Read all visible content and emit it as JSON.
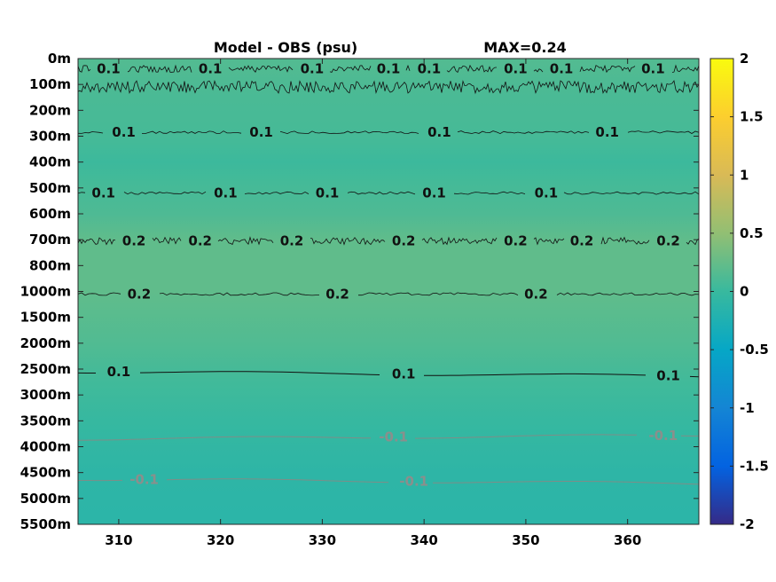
{
  "chart_data": {
    "type": "heatmap",
    "title": "Model - OBS (psu)",
    "annotation": "MAX=0.24",
    "xlabel": "",
    "ylabel": "",
    "x_ticks": [
      310,
      320,
      330,
      340,
      350,
      360
    ],
    "xlim": [
      306,
      367
    ],
    "y_tick_labels": [
      "0m",
      "100m",
      "200m",
      "300m",
      "400m",
      "500m",
      "600m",
      "700m",
      "800m",
      "1000m",
      "1500m",
      "2000m",
      "2500m",
      "3000m",
      "3500m",
      "4000m",
      "4500m",
      "5000m",
      "5500m"
    ],
    "colorbar": {
      "colormap": "parula",
      "clim": [
        -2,
        2
      ],
      "ticks": [
        "2",
        "1.5",
        "1",
        "0.5",
        "0",
        "-0.5",
        "-1",
        "-1.5",
        "-2"
      ]
    },
    "field_bands": [
      {
        "depth_level": 0.0,
        "value": 0.15
      },
      {
        "depth_level": 1.5,
        "value": 0.1
      },
      {
        "depth_level": 3.0,
        "value": 0.08
      },
      {
        "depth_level": 4.0,
        "value": 0.02
      },
      {
        "depth_level": 5.0,
        "value": 0.08
      },
      {
        "depth_level": 6.0,
        "value": 0.12
      },
      {
        "depth_level": 7.0,
        "value": 0.22
      },
      {
        "depth_level": 9.0,
        "value": 0.22
      },
      {
        "depth_level": 11.0,
        "value": 0.14
      },
      {
        "depth_level": 12.5,
        "value": 0.05
      },
      {
        "depth_level": 14.0,
        "value": -0.02
      },
      {
        "depth_level": 16.0,
        "value": -0.1
      },
      {
        "depth_level": 18.0,
        "value": -0.12
      }
    ],
    "contours": [
      {
        "value": 0.1,
        "depth_level": 0.4,
        "style": "noisy",
        "labels": [
          {
            "x": 309,
            "text": "0.1"
          },
          {
            "x": 319,
            "text": "0.1"
          },
          {
            "x": 329,
            "text": "0.1"
          },
          {
            "x": 336.5,
            "text": "0.1"
          },
          {
            "x": 340.5,
            "text": "0.1"
          },
          {
            "x": 349,
            "text": "0.1"
          },
          {
            "x": 353.5,
            "text": "0.1"
          },
          {
            "x": 362.5,
            "text": "0.1"
          }
        ]
      },
      {
        "value": 0.1,
        "depth_level": 1.1,
        "style": "spiky",
        "labels": []
      },
      {
        "value": 0.1,
        "depth_level": 2.85,
        "style": "wavy",
        "labels": [
          {
            "x": 310.5,
            "text": "0.1"
          },
          {
            "x": 324,
            "text": "0.1"
          },
          {
            "x": 341.5,
            "text": "0.1"
          },
          {
            "x": 358,
            "text": "0.1"
          }
        ]
      },
      {
        "value": 0.1,
        "depth_level": 5.2,
        "style": "wavy",
        "labels": [
          {
            "x": 308.5,
            "text": "0.1"
          },
          {
            "x": 320.5,
            "text": "0.1"
          },
          {
            "x": 330.5,
            "text": "0.1"
          },
          {
            "x": 341,
            "text": "0.1"
          },
          {
            "x": 352,
            "text": "0.1"
          }
        ]
      },
      {
        "value": 0.2,
        "depth_level": 7.05,
        "style": "noisy",
        "labels": [
          {
            "x": 311.5,
            "text": "0.2"
          },
          {
            "x": 318,
            "text": "0.2"
          },
          {
            "x": 327,
            "text": "0.2"
          },
          {
            "x": 338,
            "text": "0.2"
          },
          {
            "x": 349,
            "text": "0.2"
          },
          {
            "x": 355.5,
            "text": "0.2"
          },
          {
            "x": 364,
            "text": "0.2"
          }
        ]
      },
      {
        "value": 0.2,
        "depth_level": 9.1,
        "style": "wavy",
        "labels": [
          {
            "x": 312,
            "text": "0.2"
          },
          {
            "x": 331.5,
            "text": "0.2"
          },
          {
            "x": 351,
            "text": "0.2"
          }
        ]
      },
      {
        "value": 0.1,
        "depth_level": 12.1,
        "style": "smooth",
        "labels": [
          {
            "x": 310,
            "text": "0.1"
          },
          {
            "x": 338,
            "text": "0.1"
          },
          {
            "x": 364,
            "text": "0.1"
          }
        ]
      },
      {
        "value": -0.1,
        "depth_level": 14.7,
        "style": "smooth",
        "labels": [
          {
            "x": 337,
            "text": "-0.1"
          },
          {
            "x": 363.5,
            "text": "-0.1"
          }
        ]
      },
      {
        "value": -0.1,
        "depth_level": 16.25,
        "style": "smooth",
        "labels": [
          {
            "x": 312.5,
            "text": "-0.1"
          },
          {
            "x": 339,
            "text": "-0.1"
          }
        ]
      }
    ],
    "grid": false,
    "legend": "colorbar-right"
  }
}
